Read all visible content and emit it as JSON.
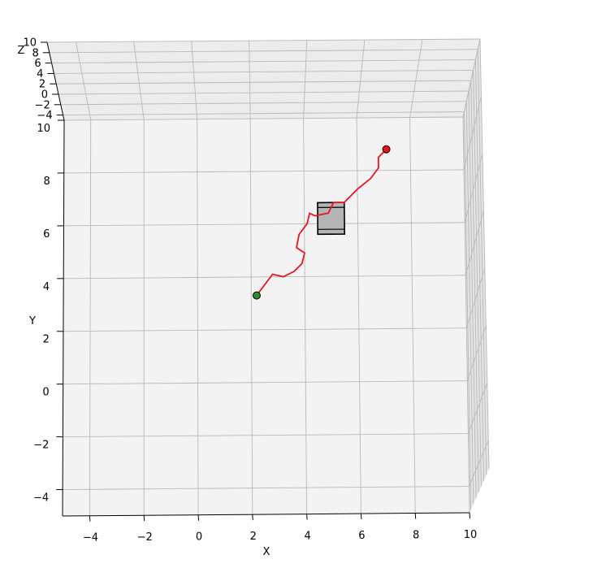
{
  "chart_data": {
    "type": "line",
    "projection": "3d",
    "title": "",
    "xlabel": "X",
    "ylabel": "Y",
    "zlabel": "Z",
    "xlim": [
      -5,
      10
    ],
    "ylim": [
      -5,
      10
    ],
    "zlim": [
      -5,
      10
    ],
    "x_ticks": [
      -4,
      -2,
      0,
      2,
      4,
      6,
      8,
      10
    ],
    "y_ticks": [
      -4,
      -2,
      0,
      2,
      4,
      6,
      8,
      10
    ],
    "z_ticks": [
      -4,
      -2,
      0,
      2,
      4,
      6,
      8,
      10
    ],
    "x_tick_labels": [
      "−4",
      "−2",
      "0",
      "2",
      "4",
      "6",
      "8",
      "10"
    ],
    "y_tick_labels": [
      "−4",
      "−2",
      "0",
      "2",
      "4",
      "6",
      "8",
      "10"
    ],
    "z_tick_labels": [
      "−4",
      "−2",
      "0",
      "2",
      "4",
      "6",
      "8",
      "10"
    ],
    "grid": true,
    "path": {
      "color": "#e8141c",
      "x": [
        2.2,
        2.8,
        3.2,
        3.6,
        3.9,
        4.0,
        3.7,
        3.8,
        4.1,
        4.2,
        4.4,
        4.9,
        5.1,
        5.5,
        6.0,
        6.5,
        6.8,
        6.8,
        7.1
      ],
      "y": [
        3.3,
        4.1,
        4.0,
        4.2,
        4.5,
        4.9,
        5.1,
        5.6,
        6.0,
        6.4,
        6.3,
        6.4,
        6.8,
        6.8,
        7.3,
        7.7,
        8.1,
        8.5,
        8.8
      ]
    },
    "start_point": {
      "x": 2.2,
      "y": 3.3,
      "color": "#2e8b2e"
    },
    "end_point": {
      "x": 7.1,
      "y": 8.8,
      "color": "#e8141c"
    },
    "obstacle": {
      "x": [
        4.5,
        5.5
      ],
      "y": [
        5.6,
        6.8
      ],
      "color": "#b4b4b4"
    }
  }
}
